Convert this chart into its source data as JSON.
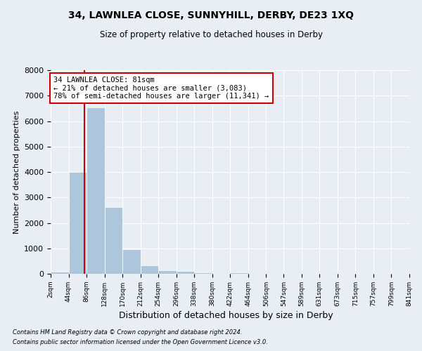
{
  "title": "34, LAWNLEA CLOSE, SUNNYHILL, DERBY, DE23 1XQ",
  "subtitle": "Size of property relative to detached houses in Derby",
  "xlabel": "Distribution of detached houses by size in Derby",
  "ylabel": "Number of detached properties",
  "footnote1": "Contains HM Land Registry data © Crown copyright and database right 2024.",
  "footnote2": "Contains public sector information licensed under the Open Government Licence v3.0.",
  "annotation_title": "34 LAWNLEA CLOSE: 81sqm",
  "annotation_line1": "← 21% of detached houses are smaller (3,083)",
  "annotation_line2": "78% of semi-detached houses are larger (11,341) →",
  "property_size": 81,
  "bin_edges": [
    2,
    44,
    86,
    128,
    170,
    212,
    254,
    296,
    338,
    380,
    422,
    464,
    506,
    547,
    589,
    631,
    673,
    715,
    757,
    799,
    841
  ],
  "bar_heights": [
    70,
    4010,
    6550,
    2620,
    960,
    320,
    130,
    110,
    60,
    0,
    60,
    0,
    0,
    0,
    0,
    0,
    0,
    0,
    0,
    0
  ],
  "bar_color": "#aec6db",
  "bar_edge_color": "#ffffff",
  "line_color": "#cc0000",
  "background_color": "#e8eef4",
  "grid_color": "#ffffff",
  "annotation_box_color": "#ffffff",
  "annotation_box_edge": "#cc0000",
  "ylim": [
    0,
    8000
  ],
  "yticks": [
    0,
    1000,
    2000,
    3000,
    4000,
    5000,
    6000,
    7000,
    8000
  ],
  "tick_labels": [
    "2sqm",
    "44sqm",
    "86sqm",
    "128sqm",
    "170sqm",
    "212sqm",
    "254sqm",
    "296sqm",
    "338sqm",
    "380sqm",
    "422sqm",
    "464sqm",
    "506sqm",
    "547sqm",
    "589sqm",
    "631sqm",
    "673sqm",
    "715sqm",
    "757sqm",
    "799sqm",
    "841sqm"
  ]
}
